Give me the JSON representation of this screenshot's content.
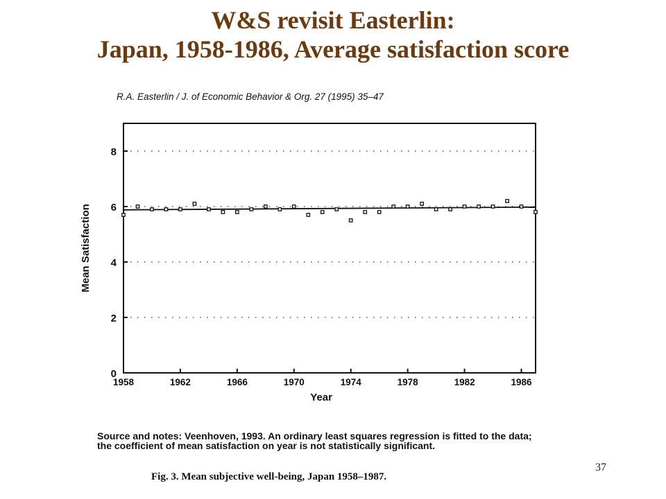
{
  "slide": {
    "title_line1": "W&S revisit Easterlin:",
    "title_line2": "Japan, 1958-1986, Average satisfaction score",
    "journal_ref": "R.A. Easterlin / J. of Economic Behavior & Org. 27 (1995) 35–47",
    "source_notes": "Source and notes: Veenhoven, 1993. An ordinary least squares regression is fitted to the data; the coefficient of mean satisfaction on year is not statistically significant.",
    "fig_caption": "Fig. 3. Mean subjective well-being, Japan 1958–1987.",
    "slide_number": "37"
  },
  "chart_data": {
    "type": "scatter",
    "xlabel": "Year",
    "ylabel": "Mean Satisfaction",
    "xlim": [
      1958,
      1987
    ],
    "ylim": [
      0,
      9
    ],
    "xticks": [
      1958,
      1962,
      1966,
      1970,
      1974,
      1978,
      1982,
      1986
    ],
    "yticks": [
      0,
      2,
      4,
      6,
      8
    ],
    "grid": "dotted-horizontal",
    "x": [
      1958,
      1959,
      1960,
      1961,
      1962,
      1963,
      1964,
      1965,
      1966,
      1967,
      1968,
      1969,
      1970,
      1971,
      1972,
      1973,
      1974,
      1975,
      1976,
      1977,
      1978,
      1979,
      1980,
      1981,
      1982,
      1983,
      1984,
      1985,
      1986,
      1987
    ],
    "y": [
      5.7,
      6.0,
      5.9,
      5.9,
      5.9,
      6.1,
      5.9,
      5.8,
      5.8,
      5.9,
      6.0,
      5.9,
      6.0,
      5.7,
      5.8,
      5.9,
      5.5,
      5.8,
      5.8,
      6.0,
      6.0,
      6.1,
      5.9,
      5.9,
      6.0,
      6.0,
      6.0,
      6.2,
      6.0,
      5.8
    ],
    "trend": {
      "x": [
        1958,
        1987
      ],
      "y": [
        5.88,
        5.98
      ]
    }
  }
}
